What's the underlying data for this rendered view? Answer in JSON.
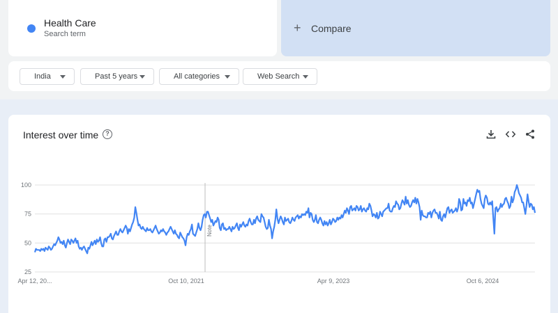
{
  "search_term": {
    "name": "Health Care",
    "type_label": "Search term",
    "color": "#4285f4"
  },
  "compare": {
    "plus": "+",
    "label": "Compare"
  },
  "filters": {
    "region": "India",
    "time_range": "Past 5 years",
    "category": "All categories",
    "search_type": "Web Search"
  },
  "chart_section": {
    "title": "Interest over time",
    "help_icon": "help-circle-icon",
    "tools": [
      "download-icon",
      "embed-code-icon",
      "share-icon"
    ]
  },
  "chart_data": {
    "type": "line",
    "title": "",
    "xlabel": "",
    "ylabel": "",
    "ylim": [
      25,
      100
    ],
    "yticks": [
      100,
      75,
      50,
      25
    ],
    "xtick_labels": [
      "Apr 12, 20...",
      "Oct 10, 2021",
      "Apr 9, 2023",
      "Oct 6, 2024"
    ],
    "note_label": "Note",
    "grid": true,
    "series": [
      {
        "color": "#4285f4",
        "values": [
          42,
          45,
          44,
          44,
          44,
          43,
          45,
          44,
          45,
          43,
          46,
          45,
          44,
          47,
          46,
          44,
          45,
          47,
          49,
          48,
          50,
          52,
          55,
          53,
          50,
          51,
          49,
          52,
          48,
          46,
          50,
          53,
          51,
          49,
          53,
          52,
          50,
          52,
          54,
          50,
          52,
          47,
          45,
          46,
          44,
          46,
          47,
          45,
          43,
          41,
          46,
          45,
          48,
          51,
          48,
          50,
          52,
          49,
          53,
          51,
          52,
          55,
          50,
          47,
          47,
          53,
          54,
          51,
          55,
          55,
          56,
          58,
          54,
          53,
          56,
          58,
          60,
          57,
          57,
          60,
          62,
          60,
          59,
          61,
          63,
          65,
          63,
          58,
          62,
          60,
          63,
          66,
          68,
          72,
          81,
          76,
          70,
          65,
          66,
          63,
          62,
          64,
          62,
          61,
          60,
          63,
          61,
          61,
          62,
          60,
          59,
          61,
          63,
          65,
          62,
          60,
          58,
          59,
          61,
          60,
          62,
          60,
          59,
          57,
          59,
          60,
          62,
          64,
          62,
          60,
          58,
          61,
          58,
          57,
          55,
          54,
          59,
          57,
          55,
          54,
          52,
          48,
          55,
          58,
          57,
          60,
          62,
          66,
          58,
          57,
          56,
          59,
          62,
          67,
          63,
          61,
          64,
          70,
          74,
          75,
          72,
          77,
          77,
          74,
          71,
          68,
          70,
          65,
          67,
          69,
          68,
          72,
          70,
          63,
          61,
          66,
          67,
          62,
          63,
          61,
          62,
          62,
          64,
          62,
          60,
          64,
          62,
          63,
          65,
          67,
          63,
          61,
          66,
          64,
          66,
          68,
          65,
          64,
          66,
          65,
          69,
          71,
          68,
          66,
          66,
          70,
          67,
          71,
          73,
          70,
          69,
          68,
          75,
          73,
          72,
          68,
          64,
          62,
          63,
          70,
          65,
          62,
          54,
          60,
          64,
          70,
          79,
          71,
          67,
          70,
          73,
          71,
          68,
          66,
          72,
          69,
          70,
          71,
          68,
          67,
          69,
          72,
          70,
          69,
          72,
          73,
          74,
          71,
          73,
          72,
          75,
          74,
          75,
          74,
          77,
          76,
          80,
          72,
          76,
          75,
          70,
          68,
          70,
          74,
          68,
          67,
          70,
          72,
          70,
          67,
          65,
          69,
          66,
          68,
          65,
          67,
          70,
          66,
          68,
          71,
          70,
          68,
          69,
          72,
          70,
          72,
          71,
          74,
          72,
          75,
          78,
          76,
          80,
          78,
          75,
          81,
          82,
          78,
          79,
          80,
          78,
          82,
          81,
          78,
          79,
          82,
          77,
          79,
          80,
          78,
          77,
          80,
          79,
          84,
          82,
          78,
          73,
          75,
          74,
          72,
          76,
          71,
          72,
          77,
          75,
          73,
          77,
          78,
          79,
          80,
          80,
          84,
          78,
          77,
          77,
          80,
          82,
          81,
          86,
          84,
          83,
          79,
          80,
          84,
          87,
          85,
          83,
          90,
          84,
          87,
          83,
          81,
          82,
          85,
          87,
          85,
          89,
          84,
          88,
          85,
          81,
          70,
          78,
          74,
          73,
          73,
          72,
          72,
          76,
          75,
          77,
          72,
          76,
          78,
          79,
          76,
          76,
          74,
          71,
          77,
          70,
          69,
          73,
          75,
          72,
          76,
          80,
          81,
          76,
          78,
          79,
          76,
          77,
          78,
          80,
          77,
          80,
          88,
          85,
          78,
          79,
          88,
          84,
          85,
          82,
          87,
          86,
          89,
          84,
          85,
          80,
          84,
          88,
          92,
          96,
          94,
          95,
          88,
          84,
          82,
          80,
          88,
          91,
          89,
          84,
          83,
          85,
          83,
          86,
          71,
          58,
          80,
          81,
          77,
          79,
          80,
          84,
          81,
          83,
          84,
          88,
          89,
          86,
          84,
          80,
          82,
          90,
          85,
          88,
          94,
          96,
          100,
          97,
          93,
          91,
          89,
          85,
          85,
          80,
          75,
          82,
          92,
          86,
          81,
          84,
          83,
          79,
          81,
          76
        ]
      }
    ]
  }
}
